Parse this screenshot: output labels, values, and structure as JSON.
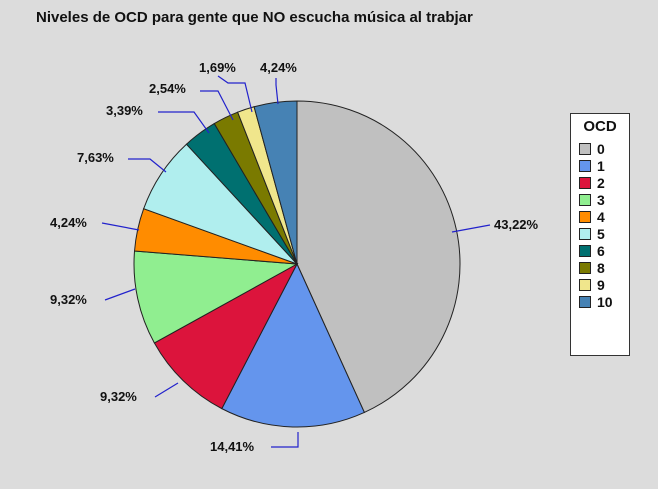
{
  "chart_data": {
    "type": "pie",
    "title": "Niveles de OCD para gente que NO escucha música al trabjar",
    "legend_title": "OCD",
    "legend_position": "right",
    "slices": [
      {
        "category": "0",
        "value": 43.22,
        "label": "43,22%",
        "color": "#c0c0c0"
      },
      {
        "category": "1",
        "value": 14.41,
        "label": "14,41%",
        "color": "#6495ed"
      },
      {
        "category": "2",
        "value": 9.32,
        "label": "9,32%",
        "color": "#dc143c"
      },
      {
        "category": "3",
        "value": 9.32,
        "label": "9,32%",
        "color": "#90ee90"
      },
      {
        "category": "4",
        "value": 4.24,
        "label": "4,24%",
        "color": "#ff8c00"
      },
      {
        "category": "5",
        "value": 7.63,
        "label": "7,63%",
        "color": "#b0eeee"
      },
      {
        "category": "6",
        "value": 3.39,
        "label": "3,39%",
        "color": "#007070"
      },
      {
        "category": "8",
        "value": 2.54,
        "label": "2,54%",
        "color": "#7a7a00"
      },
      {
        "category": "9",
        "value": 1.69,
        "label": "1,69%",
        "color": "#f0e68c"
      },
      {
        "category": "10",
        "value": 4.24,
        "label": "4,24%",
        "color": "#4682b4"
      }
    ],
    "leader_color": "#2222cc"
  }
}
